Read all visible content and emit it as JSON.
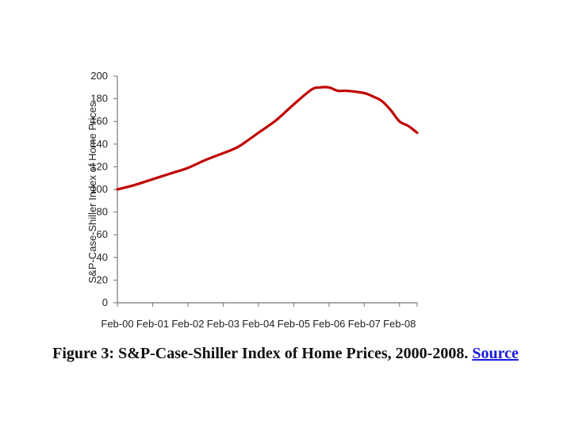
{
  "chart_data": {
    "type": "line",
    "title": "",
    "xlabel": "",
    "ylabel": "S&P-Case-Shiller Index of Home Prices",
    "ylim": [
      0,
      200
    ],
    "yticks": [
      0,
      20,
      40,
      60,
      80,
      100,
      120,
      140,
      160,
      180,
      200
    ],
    "xlim": [
      0,
      8.5
    ],
    "xticks": [
      "Feb-00",
      "Feb-01",
      "Feb-02",
      "Feb-03",
      "Feb-04",
      "Feb-05",
      "Feb-06",
      "Feb-07",
      "Feb-08"
    ],
    "grid": false,
    "legend": "none",
    "series": [
      {
        "color": "#c00000",
        "x": [
          0,
          0.5,
          1,
          1.5,
          2,
          2.5,
          3,
          3.25,
          3.5,
          4,
          4.5,
          5,
          5.5,
          5.75,
          6,
          6.25,
          6.5,
          7,
          7.25,
          7.5,
          7.75,
          8,
          8.25,
          8.5
        ],
        "y": [
          100,
          104,
          109,
          114,
          119,
          126,
          132,
          135,
          139,
          150,
          161,
          175,
          188,
          190,
          190,
          187,
          187,
          185,
          182,
          178,
          170,
          160,
          156,
          150
        ]
      }
    ]
  },
  "caption": {
    "text": "Figure 3: S&P-Case-Shiller Index of Home Prices, 2000-2008.",
    "link": "Source"
  }
}
